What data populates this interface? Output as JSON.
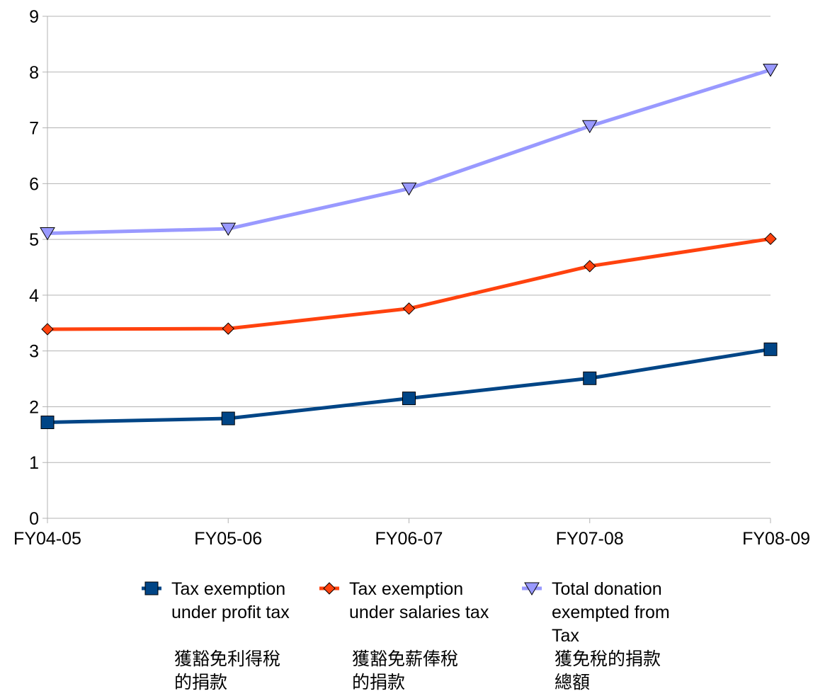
{
  "chart_data": {
    "type": "line",
    "title": "",
    "xlabel": "",
    "ylabel": "",
    "categories": [
      "FY04-05",
      "FY05-06",
      "FY06-07",
      "FY07-08",
      "FY08-09"
    ],
    "ylim": [
      0,
      9
    ],
    "yticks": [
      "0",
      "1",
      "2",
      "3",
      "4",
      "5",
      "6",
      "7",
      "8",
      "9"
    ],
    "grid": true,
    "legend_position": "bottom",
    "series": [
      {
        "name": "Tax exemption under profit tax",
        "legend_lines": [
          "Tax exemption",
          "under profit tax"
        ],
        "chinese_lines": [
          "獲豁免利得稅",
          "的捐款"
        ],
        "marker": "square",
        "color": "#004586",
        "values": [
          1.72,
          1.79,
          2.15,
          2.51,
          3.03
        ]
      },
      {
        "name": "Tax exemption under salaries tax",
        "legend_lines": [
          "Tax exemption",
          "under salaries tax"
        ],
        "chinese_lines": [
          "獲豁免薪俸稅",
          "的捐款"
        ],
        "marker": "diamond",
        "color": "#ff420e",
        "values": [
          3.39,
          3.4,
          3.76,
          4.52,
          5.01
        ]
      },
      {
        "name": "Total donation exempted from Tax",
        "legend_lines": [
          "Total donation",
          "exempted from",
          "Tax"
        ],
        "chinese_lines": [
          "獲免稅的捐款",
          "總額"
        ],
        "marker": "triangle-down",
        "color": "#9999ff",
        "values": [
          5.11,
          5.19,
          5.91,
          7.03,
          8.04
        ]
      }
    ]
  }
}
